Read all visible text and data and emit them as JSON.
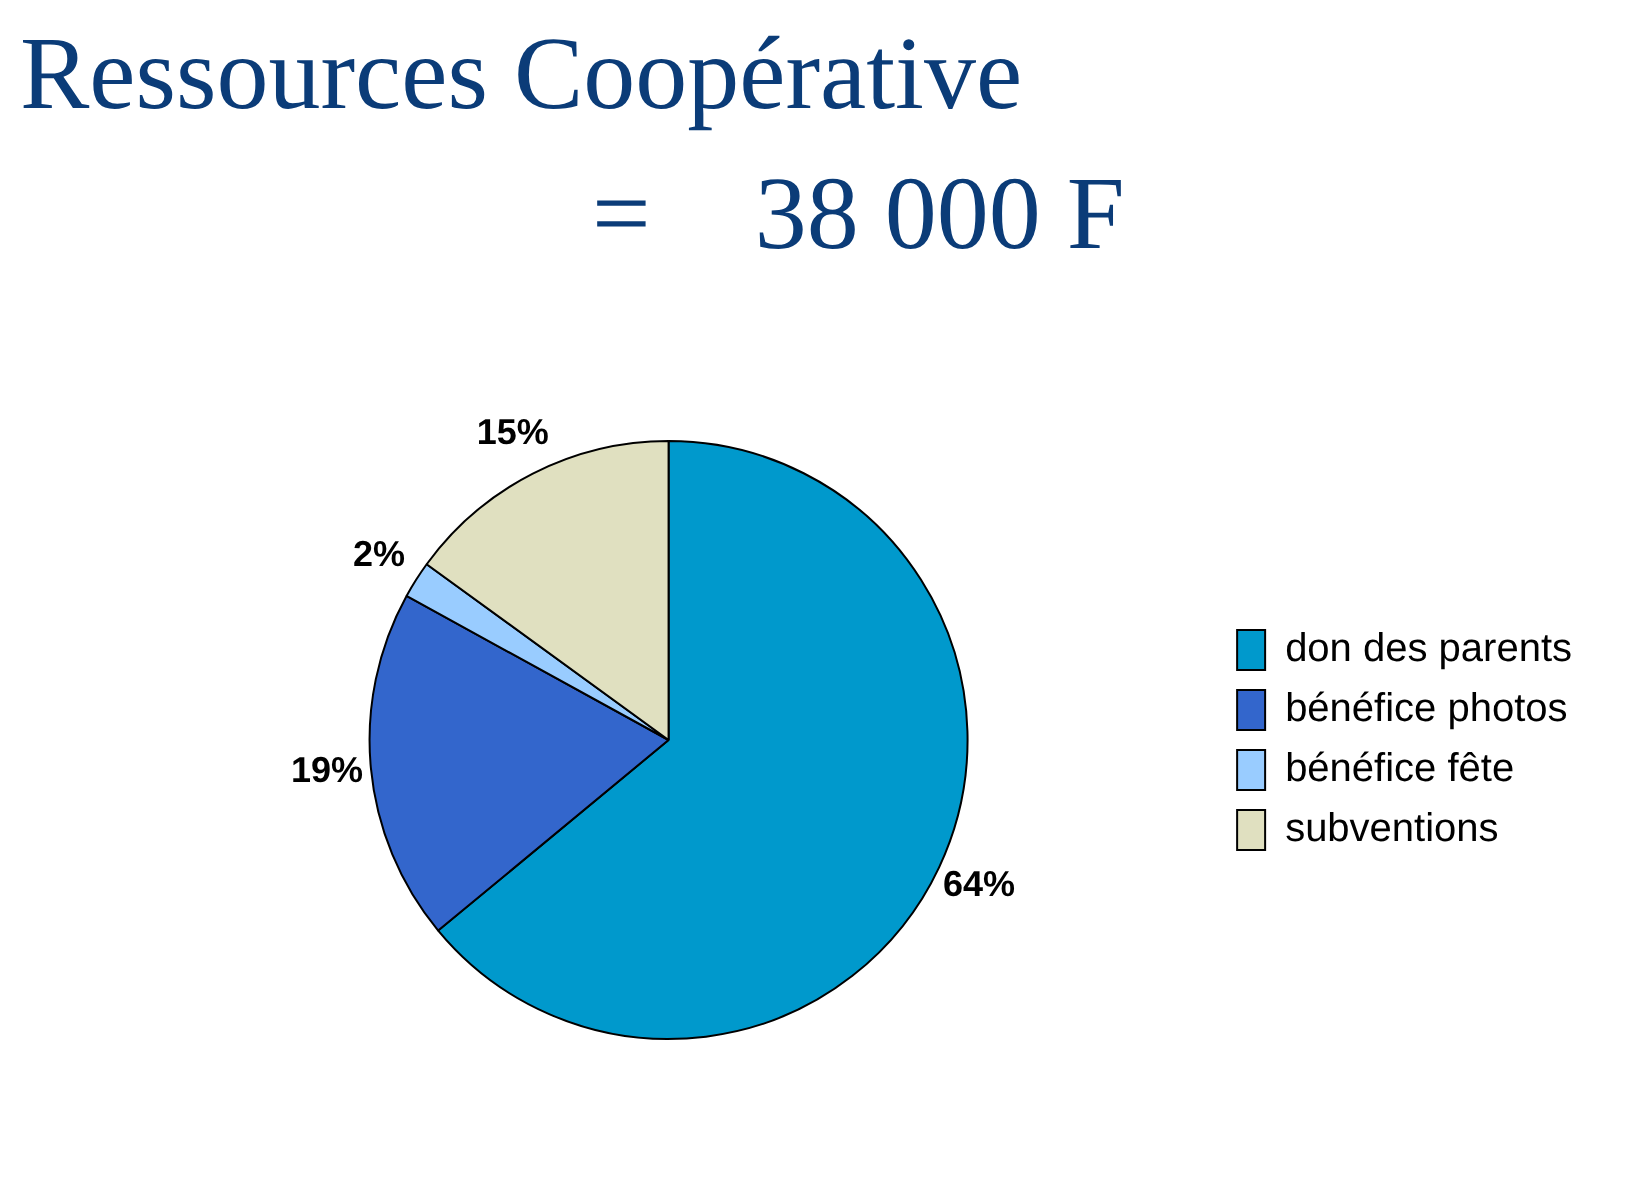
{
  "chart_data": {
    "type": "pie",
    "title": "Ressources Coopérative",
    "subtitle": "=    38 000 F",
    "categories": [
      "don des parents",
      "bénéfice photos",
      "bénéfice fête",
      "subventions"
    ],
    "values": [
      64,
      19,
      2,
      15
    ],
    "colors": [
      "#0099cc",
      "#3366cc",
      "#99ccff",
      "#e0e0c0"
    ],
    "value_labels": [
      "64%",
      "19%",
      "2%",
      "15%"
    ],
    "legend": "right"
  }
}
